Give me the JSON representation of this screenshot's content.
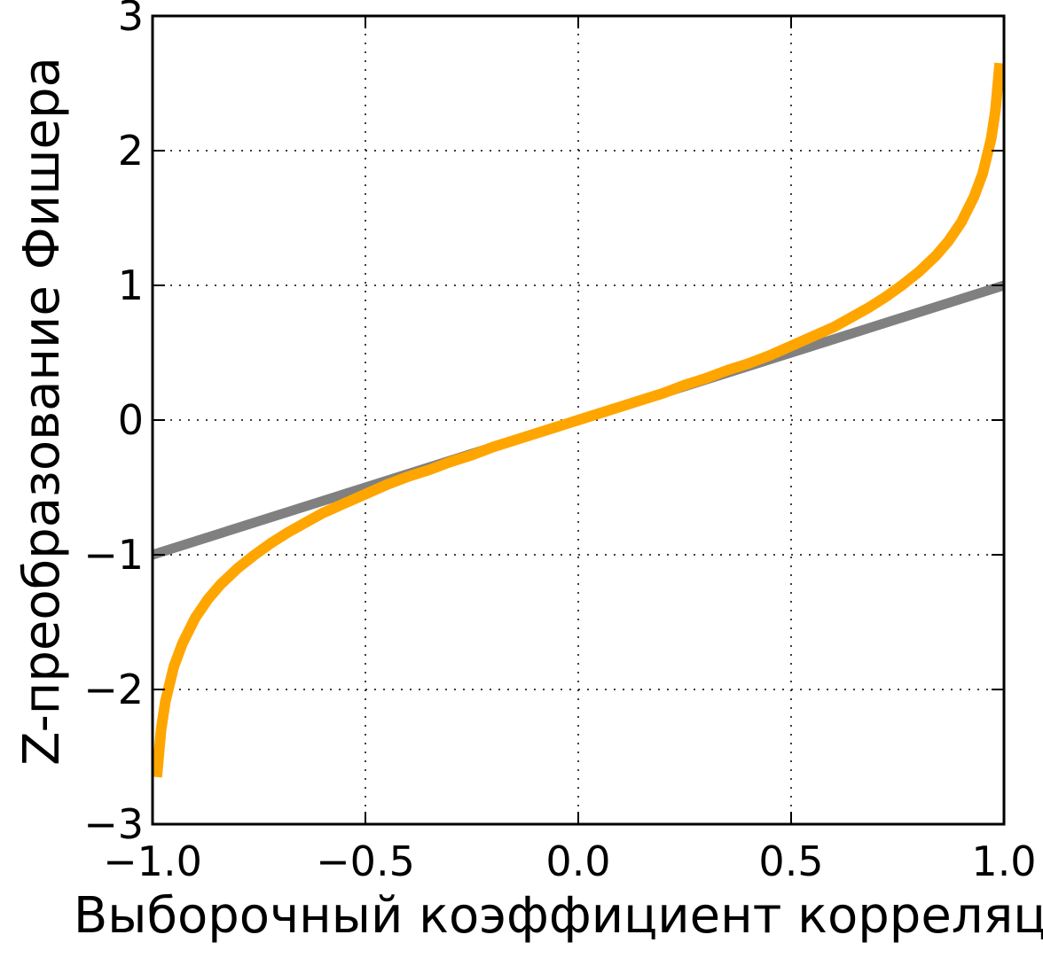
{
  "chart_data": {
    "type": "line",
    "title": "",
    "xlabel": "Выборочный коэффициент корреляции",
    "ylabel": "Z-преобразование Фишера",
    "xlim": [
      -1.0,
      1.0
    ],
    "ylim": [
      -3,
      3
    ],
    "xticks": [
      -1.0,
      -0.5,
      0.0,
      0.5,
      1.0
    ],
    "xtick_labels": [
      "−1.0",
      "−0.5",
      "0.0",
      "0.5",
      "1.0"
    ],
    "yticks": [
      -3,
      -2,
      -1,
      0,
      1,
      2,
      3
    ],
    "ytick_labels": [
      "−3",
      "−2",
      "−1",
      "0",
      "1",
      "2",
      "3"
    ],
    "grid": true,
    "grid_style": "dotted",
    "legend": "none",
    "series": [
      {
        "color": "#808080",
        "x": [
          -1.0,
          1.0
        ],
        "y": [
          -1.0,
          1.0
        ]
      },
      {
        "color": "#FFA500",
        "x": [
          -0.99,
          -0.98,
          -0.97,
          -0.95,
          -0.93,
          -0.9,
          -0.87,
          -0.84,
          -0.8,
          -0.76,
          -0.72,
          -0.68,
          -0.64,
          -0.6,
          -0.55,
          -0.5,
          -0.45,
          -0.4,
          -0.35,
          -0.3,
          -0.25,
          -0.2,
          -0.15,
          -0.1,
          -0.05,
          0.0,
          0.05,
          0.1,
          0.15,
          0.2,
          0.25,
          0.3,
          0.35,
          0.4,
          0.45,
          0.5,
          0.55,
          0.6,
          0.64,
          0.68,
          0.72,
          0.76,
          0.8,
          0.84,
          0.87,
          0.9,
          0.93,
          0.95,
          0.97,
          0.98,
          0.99
        ],
        "y": [
          -2.65,
          -2.3,
          -2.09,
          -1.83,
          -1.66,
          -1.47,
          -1.33,
          -1.22,
          -1.1,
          -1.0,
          -0.91,
          -0.83,
          -0.76,
          -0.69,
          -0.62,
          -0.55,
          -0.48,
          -0.42,
          -0.37,
          -0.31,
          -0.26,
          -0.2,
          -0.15,
          -0.1,
          -0.05,
          0.0,
          0.05,
          0.1,
          0.15,
          0.2,
          0.26,
          0.31,
          0.37,
          0.42,
          0.48,
          0.55,
          0.62,
          0.69,
          0.76,
          0.83,
          0.91,
          1.0,
          1.1,
          1.22,
          1.33,
          1.47,
          1.66,
          1.83,
          2.09,
          2.3,
          2.65
        ]
      }
    ]
  }
}
